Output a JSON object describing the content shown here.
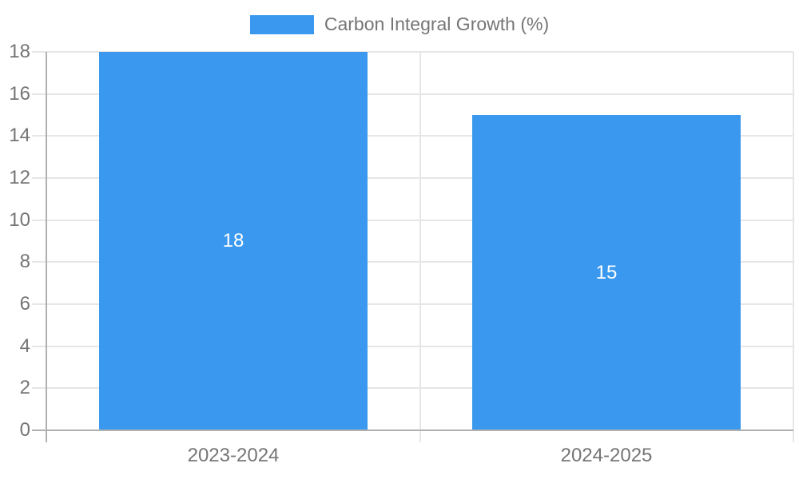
{
  "chart_data": {
    "type": "bar",
    "title": "",
    "legend": "Carbon Integral Growth (%)",
    "legend_position": "top",
    "categories": [
      "2023-2024",
      "2024-2025"
    ],
    "values": [
      18,
      15
    ],
    "data_labels": [
      "18",
      "15"
    ],
    "xlabel": "",
    "ylabel": "",
    "ylim": [
      0,
      18
    ],
    "ytick_step": 2,
    "ytick_labels": [
      "0",
      "2",
      "4",
      "6",
      "8",
      "10",
      "12",
      "14",
      "16",
      "18"
    ],
    "grid": true,
    "colors": {
      "bar": "#3a99ee",
      "bar_label": "#ffffff",
      "axis_text": "#757575",
      "grid_line": "#e6e6e6",
      "axis_line": "#b0b0b0",
      "background": "#ffffff"
    }
  }
}
